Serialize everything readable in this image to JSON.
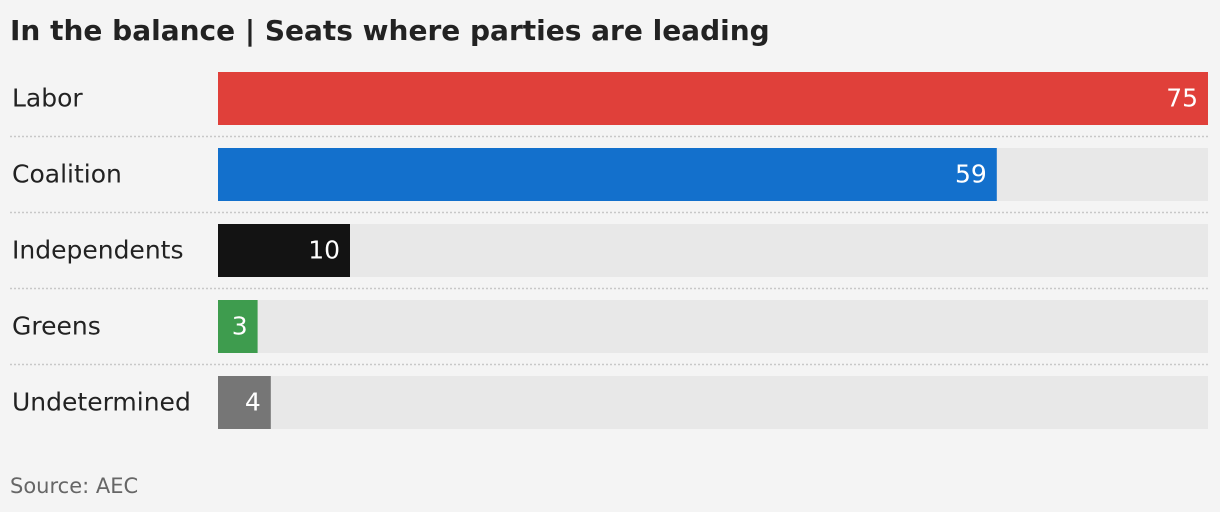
{
  "chart_data": {
    "type": "hbar",
    "title": "In the balance | Seats where parties are leading",
    "categories": [
      "Labor",
      "Coalition",
      "Independents",
      "Greens",
      "Undetermined"
    ],
    "values": [
      75,
      59,
      10,
      3,
      4
    ],
    "colors": [
      "#e0403a",
      "#1370cc",
      "#131313",
      "#3e9c4e",
      "#767676"
    ],
    "xlim": [
      0,
      75
    ],
    "source": "Source: AEC"
  }
}
